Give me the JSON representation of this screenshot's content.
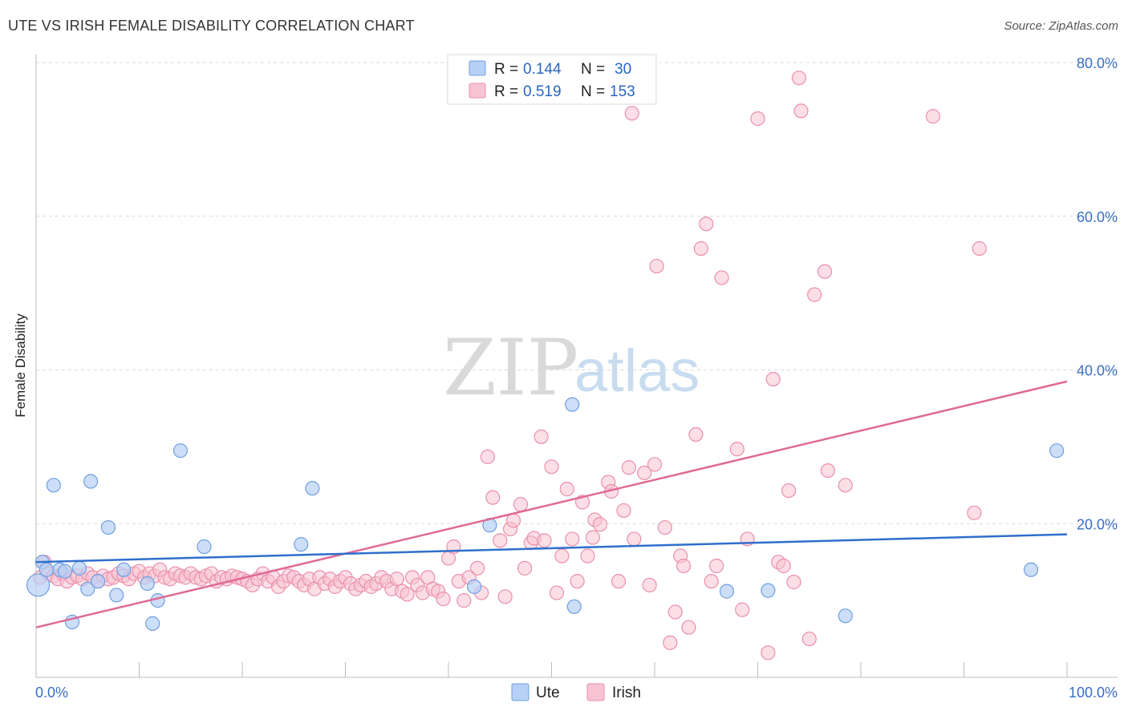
{
  "title": "UTE VS IRISH FEMALE DISABILITY CORRELATION CHART",
  "source": "Source: ZipAtlas.com",
  "watermark": {
    "zip": "ZIP",
    "atlas": "atlas"
  },
  "legend": {
    "r_label": "R =",
    "n_label": "N =",
    "ute": {
      "r": "0.144",
      "n": "30"
    },
    "irish": {
      "r": "0.519",
      "n": "153"
    }
  },
  "colors": {
    "ute_fill": "#b7d0f5",
    "ute_stroke": "#6f9fe0",
    "ute_line": "#2f6fcc",
    "irish_fill": "#f7c3d2",
    "irish_stroke": "#ea8fab",
    "irish_line": "#e06a95",
    "grid": "#d9d9d9",
    "axis_text": "#3a6fc4"
  },
  "chart_data": {
    "type": "scatter",
    "title": "UTE VS IRISH FEMALE DISABILITY CORRELATION CHART",
    "xlabel": "",
    "ylabel": "Female Disability",
    "xlim": [
      0,
      100
    ],
    "ylim": [
      0,
      80
    ],
    "x_tick_labels": [
      "0.0%",
      "100.0%"
    ],
    "y_tick_labels": [
      "20.0%",
      "40.0%",
      "60.0%",
      "80.0%"
    ],
    "y_ticks": [
      20,
      40,
      60,
      80
    ],
    "grid": true,
    "legend_position": "top-center",
    "series": [
      {
        "name": "Ute",
        "r": 0.144,
        "n": 30,
        "trend": {
          "x": [
            0,
            100
          ],
          "y": [
            15.0,
            18.6
          ]
        },
        "points": [
          [
            0.2,
            12.0
          ],
          [
            0.6,
            15.0
          ],
          [
            1.0,
            14.0
          ],
          [
            1.7,
            25.0
          ],
          [
            2.3,
            14.0
          ],
          [
            2.8,
            13.8
          ],
          [
            3.5,
            7.2
          ],
          [
            4.2,
            14.2
          ],
          [
            5.0,
            11.5
          ],
          [
            5.3,
            25.5
          ],
          [
            6.0,
            12.5
          ],
          [
            7.0,
            19.5
          ],
          [
            7.8,
            10.7
          ],
          [
            8.5,
            14.0
          ],
          [
            10.8,
            12.2
          ],
          [
            11.3,
            7.0
          ],
          [
            11.8,
            10.0
          ],
          [
            14.0,
            29.5
          ],
          [
            16.3,
            17.0
          ],
          [
            25.7,
            17.3
          ],
          [
            26.8,
            24.6
          ],
          [
            42.5,
            11.8
          ],
          [
            44.0,
            19.8
          ],
          [
            52.0,
            35.5
          ],
          [
            52.2,
            9.2
          ],
          [
            67.0,
            11.2
          ],
          [
            71.0,
            11.3
          ],
          [
            78.5,
            8.0
          ],
          [
            96.5,
            14.0
          ],
          [
            99.0,
            29.5
          ]
        ]
      },
      {
        "name": "Irish",
        "r": 0.519,
        "n": 153,
        "trend": {
          "x": [
            0,
            100
          ],
          "y": [
            6.5,
            38.5
          ]
        },
        "points": [
          [
            0.4,
            13.0
          ],
          [
            0.8,
            15.0
          ],
          [
            1.2,
            13.5
          ],
          [
            1.7,
            13.2
          ],
          [
            2.1,
            12.8
          ],
          [
            2.6,
            13.5
          ],
          [
            3.0,
            12.5
          ],
          [
            3.5,
            13.0
          ],
          [
            4.0,
            13.2
          ],
          [
            4.5,
            12.8
          ],
          [
            5.0,
            13.5
          ],
          [
            5.5,
            13.0
          ],
          [
            6.0,
            12.5
          ],
          [
            6.5,
            13.2
          ],
          [
            7.0,
            12.8
          ],
          [
            7.5,
            13.0
          ],
          [
            8.0,
            13.5
          ],
          [
            8.5,
            13.2
          ],
          [
            9.0,
            12.8
          ],
          [
            9.5,
            13.5
          ],
          [
            10.0,
            13.8
          ],
          [
            10.5,
            13.0
          ],
          [
            11.0,
            13.5
          ],
          [
            11.5,
            13.2
          ],
          [
            12.0,
            14.0
          ],
          [
            12.5,
            13.0
          ],
          [
            13.0,
            12.8
          ],
          [
            13.5,
            13.5
          ],
          [
            14.0,
            13.2
          ],
          [
            14.5,
            13.0
          ],
          [
            15.0,
            13.5
          ],
          [
            15.5,
            13.0
          ],
          [
            16.0,
            12.8
          ],
          [
            16.5,
            13.2
          ],
          [
            17.0,
            13.5
          ],
          [
            17.5,
            12.5
          ],
          [
            18.0,
            13.0
          ],
          [
            18.5,
            12.8
          ],
          [
            19.0,
            13.2
          ],
          [
            19.5,
            13.0
          ],
          [
            20.0,
            12.8
          ],
          [
            20.5,
            12.5
          ],
          [
            21.0,
            12.0
          ],
          [
            21.5,
            12.8
          ],
          [
            22.0,
            13.5
          ],
          [
            22.5,
            12.5
          ],
          [
            23.0,
            13.0
          ],
          [
            23.5,
            11.8
          ],
          [
            24.0,
            12.5
          ],
          [
            24.5,
            13.2
          ],
          [
            25.0,
            13.0
          ],
          [
            25.5,
            12.5
          ],
          [
            26.0,
            12.0
          ],
          [
            26.5,
            12.8
          ],
          [
            27.0,
            11.5
          ],
          [
            27.5,
            13.0
          ],
          [
            28.0,
            12.2
          ],
          [
            28.5,
            12.8
          ],
          [
            29.0,
            11.8
          ],
          [
            29.5,
            12.5
          ],
          [
            30.0,
            13.0
          ],
          [
            30.5,
            12.2
          ],
          [
            31.0,
            11.5
          ],
          [
            31.5,
            12.0
          ],
          [
            32.0,
            12.5
          ],
          [
            32.5,
            11.8
          ],
          [
            33.0,
            12.2
          ],
          [
            33.5,
            13.0
          ],
          [
            34.0,
            12.5
          ],
          [
            34.5,
            11.5
          ],
          [
            35.0,
            12.8
          ],
          [
            35.5,
            11.2
          ],
          [
            36.0,
            10.8
          ],
          [
            36.5,
            13.0
          ],
          [
            37.0,
            12.0
          ],
          [
            37.5,
            11.0
          ],
          [
            38.0,
            13.0
          ],
          [
            38.5,
            11.5
          ],
          [
            39.0,
            11.2
          ],
          [
            39.5,
            10.2
          ],
          [
            40.0,
            15.5
          ],
          [
            40.5,
            17.0
          ],
          [
            41.0,
            12.5
          ],
          [
            41.5,
            10.0
          ],
          [
            42.0,
            13.0
          ],
          [
            42.8,
            14.2
          ],
          [
            43.2,
            11.0
          ],
          [
            43.8,
            28.7
          ],
          [
            44.3,
            23.4
          ],
          [
            45.0,
            17.8
          ],
          [
            45.5,
            10.5
          ],
          [
            46.0,
            19.3
          ],
          [
            46.3,
            20.4
          ],
          [
            47.0,
            22.5
          ],
          [
            47.4,
            14.2
          ],
          [
            48.0,
            17.5
          ],
          [
            48.3,
            18.1
          ],
          [
            49.0,
            31.3
          ],
          [
            49.3,
            17.8
          ],
          [
            50.0,
            27.4
          ],
          [
            50.5,
            11.0
          ],
          [
            51.0,
            15.8
          ],
          [
            51.5,
            24.5
          ],
          [
            52.0,
            18.0
          ],
          [
            52.5,
            12.5
          ],
          [
            53.0,
            22.8
          ],
          [
            53.5,
            15.8
          ],
          [
            54.0,
            18.2
          ],
          [
            54.2,
            20.5
          ],
          [
            54.7,
            19.9
          ],
          [
            55.5,
            25.4
          ],
          [
            55.8,
            24.2
          ],
          [
            56.5,
            12.5
          ],
          [
            57.0,
            21.7
          ],
          [
            57.5,
            27.3
          ],
          [
            57.8,
            73.4
          ],
          [
            58.0,
            18.0
          ],
          [
            59.0,
            26.6
          ],
          [
            59.5,
            12.0
          ],
          [
            60.0,
            27.7
          ],
          [
            60.2,
            53.5
          ],
          [
            61.0,
            19.5
          ],
          [
            61.5,
            4.5
          ],
          [
            62.0,
            8.5
          ],
          [
            62.5,
            15.8
          ],
          [
            62.8,
            14.5
          ],
          [
            63.3,
            6.5
          ],
          [
            64.0,
            31.6
          ],
          [
            64.5,
            55.8
          ],
          [
            65.0,
            59.0
          ],
          [
            65.5,
            12.5
          ],
          [
            66.0,
            14.5
          ],
          [
            66.5,
            52.0
          ],
          [
            68.0,
            29.7
          ],
          [
            68.5,
            8.8
          ],
          [
            69.0,
            18.0
          ],
          [
            70.0,
            72.7
          ],
          [
            71.0,
            3.2
          ],
          [
            71.5,
            38.8
          ],
          [
            72.0,
            15.0
          ],
          [
            72.5,
            14.5
          ],
          [
            73.0,
            24.3
          ],
          [
            73.5,
            12.4
          ],
          [
            74.0,
            78.0
          ],
          [
            74.2,
            73.7
          ],
          [
            75.0,
            5.0
          ],
          [
            75.5,
            49.8
          ],
          [
            76.5,
            52.8
          ],
          [
            76.8,
            26.9
          ],
          [
            78.5,
            25.0
          ],
          [
            87.0,
            73.0
          ],
          [
            91.0,
            21.4
          ],
          [
            91.5,
            55.8
          ]
        ]
      }
    ]
  },
  "bottom_legend": {
    "ute": "Ute",
    "irish": "Irish"
  }
}
